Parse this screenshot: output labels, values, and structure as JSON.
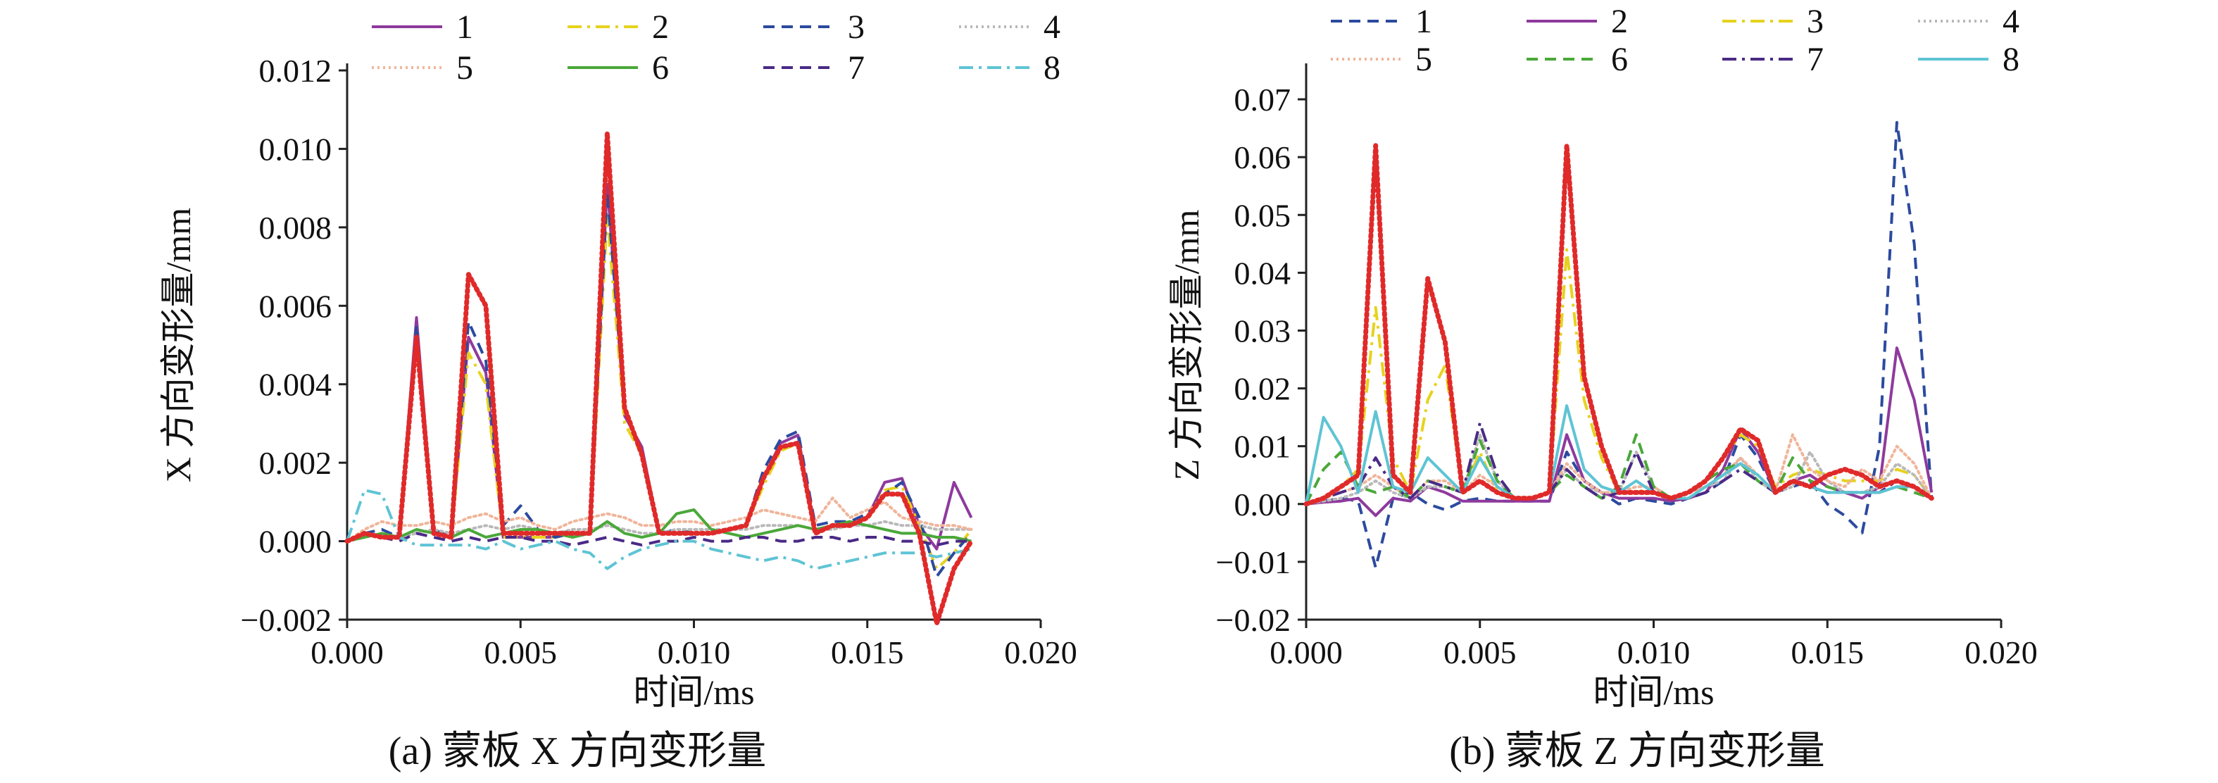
{
  "figure": {
    "captions": [
      "(a) 蒙板 X 方向变形量",
      "(b) 蒙板 Z 方向变形量"
    ]
  },
  "chart_data": [
    {
      "type": "line",
      "caption": "(a) 蒙板 X 方向变形量",
      "xlabel": "时间/ms",
      "ylabel": "X 方向变形量/mm",
      "xlim": [
        0,
        0.02
      ],
      "ylim": [
        -0.002,
        0.012
      ],
      "xticks": [
        0,
        0.005,
        0.01,
        0.015,
        0.02
      ],
      "xtick_labels": [
        "0.000",
        "0.005",
        "0.010",
        "0.015",
        "0.020"
      ],
      "yticks": [
        -0.002,
        0,
        0.002,
        0.004,
        0.006,
        0.008,
        0.01,
        0.012
      ],
      "ytick_labels": [
        "−0.002",
        "0.000",
        "0.002",
        "0.004",
        "0.006",
        "0.008",
        "0.010",
        "0.012"
      ],
      "legend": [
        "1",
        "2",
        "3",
        "4",
        "5",
        "6",
        "7",
        "8"
      ],
      "x": [
        0,
        0.0005,
        0.001,
        0.0015,
        0.002,
        0.0025,
        0.003,
        0.0035,
        0.004,
        0.0045,
        0.005,
        0.0055,
        0.006,
        0.0065,
        0.007,
        0.0075,
        0.008,
        0.0085,
        0.009,
        0.0095,
        0.01,
        0.0105,
        0.011,
        0.0115,
        0.012,
        0.0125,
        0.013,
        0.0135,
        0.014,
        0.0145,
        0.015,
        0.0155,
        0.016,
        0.0165,
        0.017,
        0.0175,
        0.018
      ],
      "series": [
        {
          "name": "1",
          "color": "#8e3a9d",
          "dash": "solid",
          "values": [
            0,
            0.0002,
            0.0001,
            0.0001,
            0.0057,
            0.0002,
            0.0001,
            0.0052,
            0.0043,
            0.0001,
            0.0001,
            0.0001,
            0.0001,
            0.0002,
            0.0002,
            0.0091,
            0.0032,
            0.0024,
            0.0002,
            0.0002,
            0.0002,
            0.0002,
            0.0003,
            0.0004,
            0.0016,
            0.0025,
            0.0027,
            0.0002,
            0.0004,
            0.0004,
            0.0006,
            0.0015,
            0.0016,
            0.0004,
            -0.0002,
            0.0015,
            0.0006
          ]
        },
        {
          "name": "2",
          "color": "#e6d21e",
          "dash": "dashdot",
          "values": [
            0,
            0.0002,
            0.0001,
            0.0001,
            0.0052,
            0.0002,
            0.0001,
            0.0048,
            0.004,
            0.0001,
            0.0001,
            0.0001,
            0.0001,
            0.0002,
            0.0002,
            0.0083,
            0.003,
            0.0022,
            0.0002,
            0.0002,
            0.0002,
            0.0002,
            0.0003,
            0.0004,
            0.0014,
            0.0023,
            0.0025,
            0.0002,
            0.0004,
            0.0004,
            0.0006,
            0.0013,
            0.0014,
            0.0004,
            -0.0007,
            -0.0003,
            0.0003
          ]
        },
        {
          "name": "3",
          "color": "#2c4a9e",
          "dash": "dashed",
          "values": [
            0,
            0.0002,
            0.0003,
            0.0001,
            0.0055,
            0.0003,
            0.0001,
            0.0056,
            0.0046,
            0.0004,
            0.0009,
            0.0003,
            0.0001,
            0.0002,
            0.0002,
            0.0089,
            0.0034,
            0.0022,
            0.0002,
            0.0003,
            0.0002,
            0.0002,
            0.0003,
            0.0004,
            0.0018,
            0.0026,
            0.0028,
            0.0004,
            0.0005,
            0.0005,
            0.0007,
            0.0012,
            0.0015,
            0.0006,
            -0.0009,
            -0.0003,
            0.0002
          ]
        },
        {
          "name": "4",
          "color": "#b9b9b9",
          "dash": "dotted",
          "values": [
            0,
            0.0001,
            0.0002,
            0.0001,
            0.0002,
            0.0003,
            0.0002,
            0.0003,
            0.0004,
            0.0003,
            0.0004,
            0.0003,
            0.0002,
            0.0003,
            0.0003,
            0.0004,
            0.0003,
            0.0002,
            0.0002,
            0.0003,
            0.0003,
            0.0003,
            0.0003,
            0.0003,
            0.0004,
            0.0004,
            0.0004,
            0.0003,
            0.0003,
            0.0004,
            0.0004,
            0.0005,
            0.0004,
            0.0004,
            0.0003,
            0.0003,
            0.0003
          ]
        },
        {
          "name": "5",
          "color": "#f0b59a",
          "dash": "dotted",
          "values": [
            0,
            0.0003,
            0.0005,
            0.0004,
            0.0004,
            0.0005,
            0.0004,
            0.0006,
            0.0007,
            0.0005,
            0.0006,
            0.0004,
            0.0003,
            0.0005,
            0.0006,
            0.0007,
            0.0006,
            0.0004,
            0.0004,
            0.0005,
            0.0005,
            0.0004,
            0.0005,
            0.0006,
            0.0008,
            0.0007,
            0.0006,
            0.0005,
            0.0011,
            0.0006,
            0.0008,
            0.001,
            0.0006,
            0.0005,
            0.0004,
            0.0004,
            0.0003
          ]
        },
        {
          "name": "6",
          "color": "#4aa83a",
          "dash": "solid",
          "values": [
            0,
            0.0001,
            0.0002,
            0.0001,
            0.0003,
            0.0002,
            0.0001,
            0.0003,
            0.0001,
            0.0002,
            0.0003,
            0.0003,
            0.0002,
            0.0001,
            0.0002,
            0.0005,
            0.0002,
            0.0001,
            0.0002,
            0.0007,
            0.0008,
            0.0003,
            0.0002,
            0.0001,
            0.0002,
            0.0003,
            0.0004,
            0.0003,
            0.0004,
            0.0005,
            0.0004,
            0.0003,
            0.0002,
            0.0002,
            0.0001,
            0.0001,
            0
          ]
        },
        {
          "name": "7",
          "color": "#4a2a86",
          "dash": "dashed",
          "values": [
            0,
            0.0002,
            0.0001,
            0,
            0.0002,
            0.0001,
            0,
            0.0001,
            0,
            0.0001,
            0.0001,
            0,
            0,
            -0.0001,
            0,
            0.0001,
            0,
            -0.0001,
            0,
            0,
            0.0001,
            0,
            0,
            0.0001,
            0.0001,
            0,
            0,
            0.0001,
            0.0001,
            0,
            0.0001,
            0.0001,
            0,
            0,
            -0.0001,
            0,
            0
          ]
        },
        {
          "name": "8",
          "color": "#5ec4d4",
          "dash": "dashdot",
          "values": [
            0,
            0.0013,
            0.0012,
            0.0001,
            -0.0001,
            -0.0001,
            -0.0001,
            -0.0001,
            -0.0002,
            0,
            -0.0002,
            -0.0001,
            0,
            -0.0002,
            -0.0003,
            -0.0007,
            -0.0004,
            -0.0002,
            -0.0001,
            0,
            0,
            -0.0002,
            -0.0003,
            -0.0004,
            -0.0005,
            -0.0004,
            -0.0005,
            -0.0007,
            -0.0006,
            -0.0005,
            -0.0004,
            -0.0003,
            -0.0003,
            -0.0003,
            -0.0004,
            -0.0003,
            -0.0002
          ]
        },
        {
          "name": "",
          "color": "#e02a2a",
          "dash": "dotted",
          "values": [
            0,
            0.0002,
            0.0001,
            0.0001,
            0.0052,
            0.0002,
            0.0001,
            0.0068,
            0.006,
            0.0002,
            0.0002,
            0.0002,
            0.0002,
            0.0002,
            0.0002,
            0.0104,
            0.0034,
            0.0022,
            0.0002,
            0.0002,
            0.0002,
            0.0002,
            0.0003,
            0.0004,
            0.0016,
            0.0024,
            0.0025,
            0.0002,
            0.0004,
            0.0004,
            0.0006,
            0.0012,
            0.0012,
            0.0002,
            -0.0021,
            -0.0007,
            0
          ]
        }
      ]
    },
    {
      "type": "line",
      "caption": "(b) 蒙板 Z 方向变形量",
      "xlabel": "时间/ms",
      "ylabel": "Z 方向变形量/mm",
      "xlim": [
        0,
        0.02
      ],
      "ylim": [
        -0.02,
        0.075
      ],
      "xticks": [
        0,
        0.005,
        0.01,
        0.015,
        0.02
      ],
      "xtick_labels": [
        "0.000",
        "0.005",
        "0.010",
        "0.015",
        "0.020"
      ],
      "yticks": [
        -0.02,
        -0.01,
        0,
        0.01,
        0.02,
        0.03,
        0.04,
        0.05,
        0.06,
        0.07
      ],
      "ytick_labels": [
        "−0.02",
        "−0.01",
        "0.00",
        "0.01",
        "0.02",
        "0.03",
        "0.04",
        "0.05",
        "0.06",
        "0.07"
      ],
      "legend": [
        "1",
        "2",
        "3",
        "4",
        "5",
        "6",
        "7",
        "8"
      ],
      "x": [
        0,
        0.0005,
        0.001,
        0.0015,
        0.002,
        0.0025,
        0.003,
        0.0035,
        0.004,
        0.0045,
        0.005,
        0.0055,
        0.006,
        0.0065,
        0.007,
        0.0075,
        0.008,
        0.0085,
        0.009,
        0.0095,
        0.01,
        0.0105,
        0.011,
        0.0115,
        0.012,
        0.0125,
        0.013,
        0.0135,
        0.014,
        0.0145,
        0.015,
        0.0155,
        0.016,
        0.0165,
        0.017,
        0.0175,
        0.018
      ],
      "series": [
        {
          "name": "1",
          "color": "#2c4a9e",
          "dash": "dashed",
          "values": [
            0,
            0.0005,
            0.001,
            0.0005,
            -0.011,
            0.001,
            0.002,
            0,
            -0.001,
            0.0005,
            0.001,
            0.0005,
            0.0005,
            0.0005,
            0.0005,
            0.009,
            0.004,
            0.002,
            0,
            0.001,
            0.0005,
            0,
            0.001,
            0.002,
            0.004,
            0.012,
            0.008,
            0.002,
            0.003,
            0.004,
            0,
            -0.002,
            -0.005,
            0.01,
            0.066,
            0.045,
            0.001
          ]
        },
        {
          "name": "2",
          "color": "#8e3a9d",
          "dash": "solid",
          "values": [
            0,
            0.0003,
            0.0005,
            0.001,
            -0.002,
            0.001,
            0.0005,
            0.003,
            0.002,
            0.0005,
            0.0005,
            0.0005,
            0.0005,
            0.0005,
            0.0005,
            0.012,
            0.004,
            0.002,
            0.001,
            0.001,
            0.001,
            0.0005,
            0.001,
            0.002,
            0.006,
            0.013,
            0.009,
            0.002,
            0.004,
            0.005,
            0.003,
            0.002,
            0.001,
            0.003,
            0.027,
            0.018,
            0.002
          ]
        },
        {
          "name": "3",
          "color": "#e6d21e",
          "dash": "dashdot",
          "values": [
            0,
            0.001,
            0.003,
            0.006,
            0.034,
            0.008,
            0.002,
            0.018,
            0.024,
            0.002,
            0.009,
            0.002,
            0.001,
            0.001,
            0.002,
            0.044,
            0.018,
            0.008,
            0.002,
            0.002,
            0.003,
            0.001,
            0.002,
            0.004,
            0.008,
            0.012,
            0.01,
            0.003,
            0.005,
            0.006,
            0.005,
            0.004,
            0.004,
            0.004,
            0.006,
            0.005,
            0.001
          ]
        },
        {
          "name": "4",
          "color": "#b9b9b9",
          "dash": "dotted",
          "values": [
            0,
            0.0005,
            0.001,
            0.002,
            0.004,
            0.002,
            0.001,
            0.003,
            0.003,
            0.002,
            0.012,
            0.004,
            0.001,
            0.001,
            0.002,
            0.006,
            0.003,
            0.002,
            0.002,
            0.009,
            0.003,
            0.001,
            0.002,
            0.003,
            0.004,
            0.008,
            0.004,
            0.002,
            0.003,
            0.009,
            0.004,
            0.002,
            0.002,
            0.003,
            0.007,
            0.005,
            0.001
          ]
        },
        {
          "name": "5",
          "color": "#f0b59a",
          "dash": "dotted",
          "values": [
            0,
            0.001,
            0.002,
            0.003,
            0.005,
            0.003,
            0.001,
            0.004,
            0.004,
            0.002,
            0.005,
            0.003,
            0.001,
            0.001,
            0.002,
            0.007,
            0.004,
            0.002,
            0.002,
            0.003,
            0.003,
            0.001,
            0.002,
            0.003,
            0.005,
            0.008,
            0.005,
            0.002,
            0.012,
            0.006,
            0.004,
            0.003,
            0.006,
            0.004,
            0.01,
            0.007,
            0.001
          ]
        },
        {
          "name": "6",
          "color": "#4aa83a",
          "dash": "dashed",
          "values": [
            0,
            0.006,
            0.009,
            0.003,
            0.002,
            0.003,
            0.001,
            0.004,
            0.003,
            0.002,
            0.011,
            0.004,
            0.001,
            0.001,
            0.002,
            0.005,
            0.003,
            0.001,
            0.003,
            0.012,
            0.003,
            0.001,
            0.002,
            0.004,
            0.006,
            0.007,
            0.004,
            0.002,
            0.008,
            0.004,
            0.003,
            0.002,
            0.002,
            0.002,
            0.003,
            0.002,
            0.001
          ]
        },
        {
          "name": "7",
          "color": "#4a2a86",
          "dash": "dashdot",
          "values": [
            0,
            0.001,
            0.002,
            0.003,
            0.008,
            0.003,
            0.001,
            0.004,
            0.003,
            0.002,
            0.014,
            0.005,
            0.001,
            0.001,
            0.002,
            0.006,
            0.003,
            0.001,
            0.002,
            0.009,
            0.002,
            0.001,
            0.001,
            0.002,
            0.004,
            0.006,
            0.004,
            0.002,
            0.004,
            0.003,
            0.002,
            0.002,
            0.002,
            0.002,
            0.004,
            0.003,
            0.001
          ]
        },
        {
          "name": "8",
          "color": "#5ec4d4",
          "dash": "solid",
          "values": [
            0,
            0.015,
            0.01,
            0.002,
            0.016,
            0.003,
            0.002,
            0.008,
            0.005,
            0.002,
            0.008,
            0.003,
            0.001,
            0.001,
            0.002,
            0.017,
            0.006,
            0.003,
            0.002,
            0.004,
            0.002,
            0.001,
            0.001,
            0.003,
            0.005,
            0.007,
            0.005,
            0.002,
            0.004,
            0.003,
            0.002,
            0.002,
            0.002,
            0.002,
            0.003,
            0.003,
            0.001
          ]
        },
        {
          "name": "",
          "color": "#e02a2a",
          "dash": "dotted",
          "values": [
            0,
            0.001,
            0.003,
            0.005,
            0.062,
            0.005,
            0.002,
            0.039,
            0.028,
            0.002,
            0.004,
            0.002,
            0.001,
            0.001,
            0.002,
            0.062,
            0.022,
            0.01,
            0.002,
            0.002,
            0.002,
            0.001,
            0.002,
            0.004,
            0.008,
            0.013,
            0.011,
            0.002,
            0.004,
            0.003,
            0.005,
            0.006,
            0.005,
            0.003,
            0.004,
            0.003,
            0.001
          ]
        }
      ]
    }
  ]
}
